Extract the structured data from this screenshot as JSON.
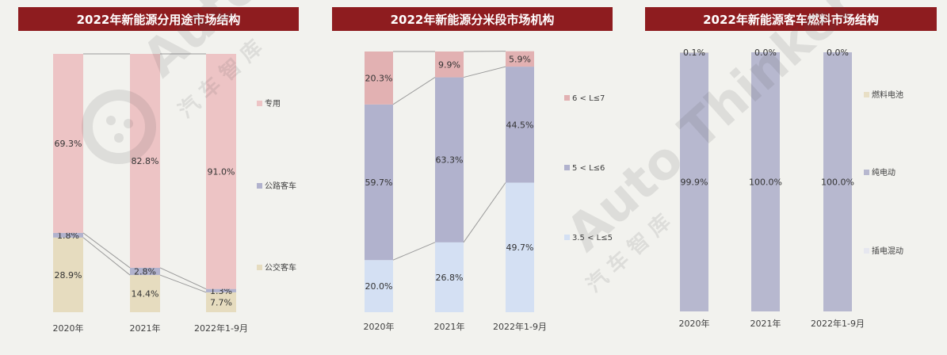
{
  "chart_data": [
    {
      "type": "bar",
      "stacked": true,
      "title": "2022年新能源分用途市场结构",
      "categories": [
        "2020年",
        "2021年",
        "2022年1-9月"
      ],
      "series": [
        {
          "name": "公交客车",
          "values": [
            28.9,
            14.4,
            7.7
          ],
          "labels": [
            "28.9%",
            "14.4%",
            "7.7%"
          ],
          "color": "#e6dcbf"
        },
        {
          "name": "公路客车",
          "values": [
            1.8,
            2.8,
            1.3
          ],
          "labels": [
            "1.8%",
            "2.8%",
            "1.3%"
          ],
          "color": "#b1b2cd"
        },
        {
          "name": "专用",
          "values": [
            69.3,
            82.8,
            91.0
          ],
          "labels": [
            "69.3%",
            "82.8%",
            "91.0%"
          ],
          "color": "#edc4c5"
        }
      ],
      "ylim": [
        0,
        100
      ],
      "grid": false,
      "legend": "right"
    },
    {
      "type": "bar",
      "stacked": true,
      "title": "2022年新能源分米段市场机构",
      "categories": [
        "2020年",
        "2021年",
        "2022年1-9月"
      ],
      "series": [
        {
          "name": "3.5 < L≤5",
          "values": [
            20.0,
            26.8,
            49.7
          ],
          "labels": [
            "20.0%",
            "26.8%",
            "49.7%"
          ],
          "color": "#d4e0f3"
        },
        {
          "name": "5 < L≤6",
          "values": [
            59.7,
            63.3,
            44.5
          ],
          "labels": [
            "59.7%",
            "63.3%",
            "44.5%"
          ],
          "color": "#b1b2cd"
        },
        {
          "name": "6 < L≤7",
          "values": [
            20.3,
            9.9,
            5.9
          ],
          "labels": [
            "20.3%",
            "9.9%",
            "5.9%"
          ],
          "color": "#e2b1b2"
        }
      ],
      "ylim": [
        0,
        100
      ],
      "grid": false,
      "legend": "right"
    },
    {
      "type": "bar",
      "stacked": true,
      "title": "2022年新能源客车燃料市场结构",
      "categories": [
        "2020年",
        "2021年",
        "2022年1-9月"
      ],
      "series": [
        {
          "name": "插电混动",
          "values": [
            0.0,
            0.0,
            0.0
          ],
          "labels": [
            "0.0%",
            "0.0%",
            "0.0%"
          ],
          "color": "#e6e7ef"
        },
        {
          "name": "纯电动",
          "values": [
            99.9,
            100.0,
            100.0
          ],
          "labels": [
            "99.9%",
            "100.0%",
            "100.0%"
          ],
          "color": "#b7b8cf"
        },
        {
          "name": "燃料电池",
          "values": [
            0.1,
            0.0,
            0.0
          ],
          "labels": [
            "0.1%",
            "0.0%",
            "0.0%"
          ],
          "color": "#e8dfc5"
        }
      ],
      "ylim": [
        0,
        100
      ],
      "grid": false,
      "legend": "right"
    }
  ],
  "watermark": {
    "text": "Auto Thinker",
    "chars": [
      "汽",
      "车",
      "智",
      "库"
    ]
  },
  "colors": {
    "title_bg": "#8e1c1f",
    "background": "#f2f2ee"
  }
}
